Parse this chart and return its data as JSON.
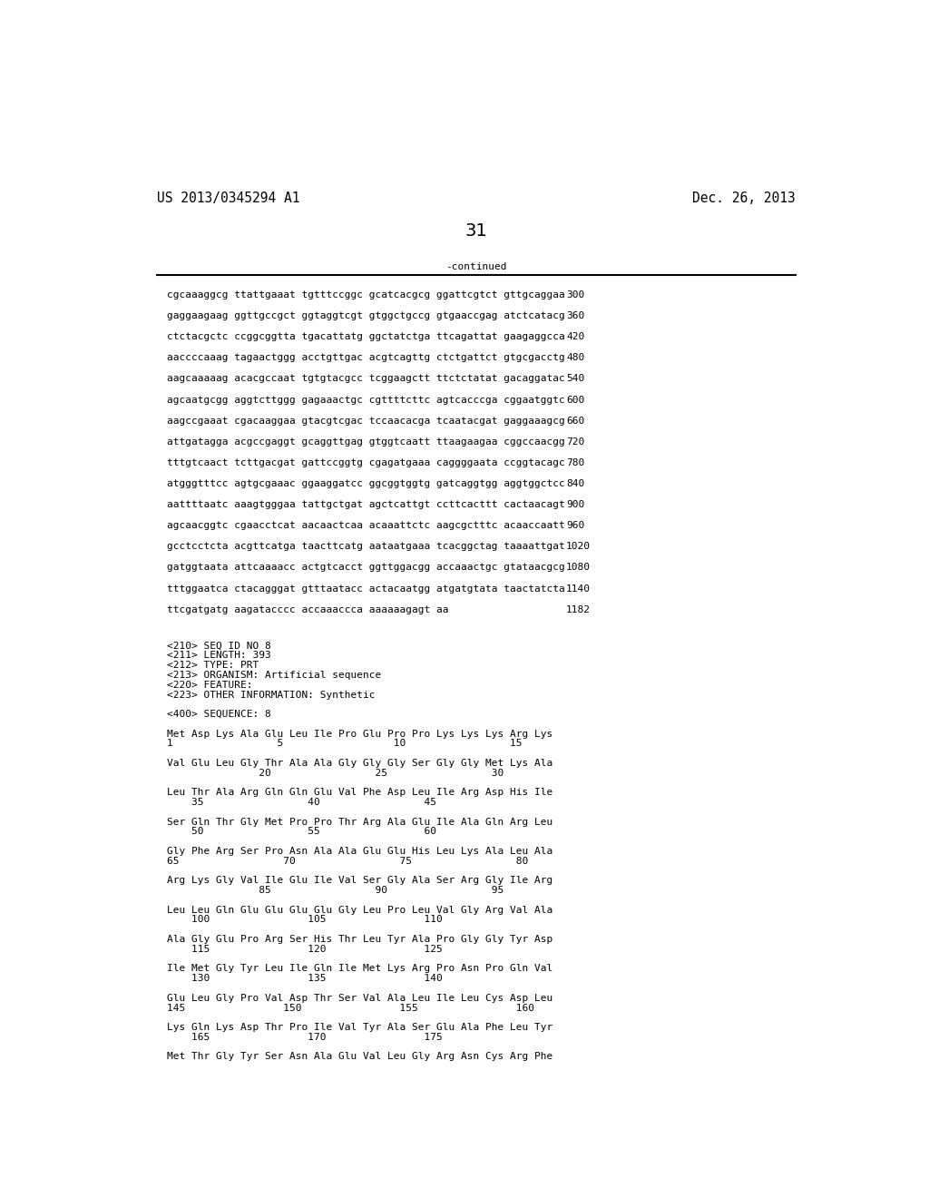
{
  "header_left": "US 2013/0345294 A1",
  "header_right": "Dec. 26, 2013",
  "page_number": "31",
  "continued_label": "-continued",
  "background_color": "#ffffff",
  "text_color": "#000000",
  "font_size_header": 10.5,
  "font_size_body": 8.0,
  "font_size_page": 14,
  "dna_lines": [
    [
      "cgcaaaggcg ttattgaaat tgtttccggc gcatcacgcg ggattcgtct gttgcaggaa",
      "300"
    ],
    [
      "gaggaagaag ggttgccgct ggtaggtcgt gtggctgccg gtgaaccgag atctcatacg",
      "360"
    ],
    [
      "ctctacgctc ccggcggtta tgacattatg ggctatctga ttcagattat gaagaggcca",
      "420"
    ],
    [
      "aaccccaaag tagaactggg acctgttgac acgtcagttg ctctgattct gtgcgacctg",
      "480"
    ],
    [
      "aagcaaaaag acacgccaat tgtgtacgcc tcggaagctt ttctctatat gacaggatac",
      "540"
    ],
    [
      "agcaatgcgg aggtcttggg gagaaactgc cgttttcttc agtcacccga cggaatggtc",
      "600"
    ],
    [
      "aagccgaaat cgacaaggaa gtacgtcgac tccaacacga tcaatacgat gaggaaagcg",
      "660"
    ],
    [
      "attgatagga acgccgaggt gcaggttgag gtggtcaatt ttaagaagaa cggccaacgg",
      "720"
    ],
    [
      "tttgtcaact tcttgacgat gattccggtg cgagatgaaa caggggaata ccggtacagc",
      "780"
    ],
    [
      "atgggtttcc agtgcgaaac ggaaggatcc ggcggtggtg gatcaggtgg aggtggctcc",
      "840"
    ],
    [
      "aattttaatc aaagtgggaa tattgctgat agctcattgt ccttcacttt cactaacagt",
      "900"
    ],
    [
      "agcaacggtc cgaacctcat aacaactcaa acaaattctc aagcgctttc acaaccaatt",
      "960"
    ],
    [
      "gcctcctcta acgttcatga taacttcatg aataatgaaa tcacggctag taaaattgat",
      "1020"
    ],
    [
      "gatggtaata attcaaaacc actgtcacct ggttggacgg accaaactgc gtataacgcg",
      "1080"
    ],
    [
      "tttggaatca ctacagggat gtttaatacc actacaatgg atgatgtata taactatcta",
      "1140"
    ],
    [
      "ttcgatgatg aagatacccc accaaaccca aaaaaagagt aa",
      "1182"
    ]
  ],
  "metadata_lines": [
    "<210> SEQ ID NO 8",
    "<211> LENGTH: 393",
    "<212> TYPE: PRT",
    "<213> ORGANISM: Artificial sequence",
    "<220> FEATURE:",
    "<223> OTHER INFORMATION: Synthetic",
    "",
    "<400> SEQUENCE: 8"
  ],
  "protein_blocks": [
    {
      "seq": "Met Asp Lys Ala Glu Leu Ile Pro Glu Pro Pro Lys Lys Lys Arg Lys",
      "num": "1                 5                  10                 15"
    },
    {
      "seq": "Val Glu Leu Gly Thr Ala Ala Gly Gly Gly Ser Gly Gly Met Lys Ala",
      "num": "               20                 25                 30"
    },
    {
      "seq": "Leu Thr Ala Arg Gln Gln Glu Val Phe Asp Leu Ile Arg Asp His Ile",
      "num": "    35                 40                 45"
    },
    {
      "seq": "Ser Gln Thr Gly Met Pro Pro Thr Arg Ala Glu Ile Ala Gln Arg Leu",
      "num": "    50                 55                 60"
    },
    {
      "seq": "Gly Phe Arg Ser Pro Asn Ala Ala Glu Glu His Leu Lys Ala Leu Ala",
      "num": "65                 70                 75                 80"
    },
    {
      "seq": "Arg Lys Gly Val Ile Glu Ile Val Ser Gly Ala Ser Arg Gly Ile Arg",
      "num": "               85                 90                 95"
    },
    {
      "seq": "Leu Leu Gln Glu Glu Glu Glu Gly Leu Pro Leu Val Gly Arg Val Ala",
      "num": "    100                105                110"
    },
    {
      "seq": "Ala Gly Glu Pro Arg Ser His Thr Leu Tyr Ala Pro Gly Gly Tyr Asp",
      "num": "    115                120                125"
    },
    {
      "seq": "Ile Met Gly Tyr Leu Ile Gln Ile Met Lys Arg Pro Asn Pro Gln Val",
      "num": "    130                135                140"
    },
    {
      "seq": "Glu Leu Gly Pro Val Asp Thr Ser Val Ala Leu Ile Leu Cys Asp Leu",
      "num": "145                150                155                160"
    },
    {
      "seq": "Lys Gln Lys Asp Thr Pro Ile Val Tyr Ala Ser Glu Ala Phe Leu Tyr",
      "num": "    165                170                175"
    },
    {
      "seq": "Met Thr Gly Tyr Ser Asn Ala Glu Val Leu Gly Arg Asn Cys Arg Phe",
      "num": ""
    }
  ]
}
